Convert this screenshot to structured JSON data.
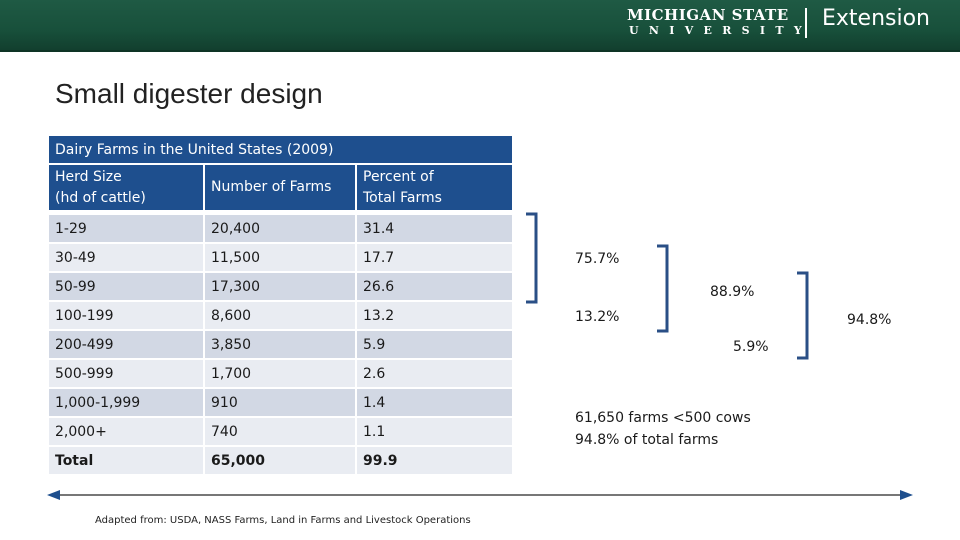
{
  "header": {
    "university_line1": "MICHIGAN STATE",
    "university_line2": "UNIVERSITY",
    "unit": "Extension"
  },
  "slide": {
    "title": "Small digester design"
  },
  "table": {
    "caption": "Dairy Farms in the United States (2009)",
    "columns": [
      {
        "line1": "Herd Size",
        "line2": "(hd of cattle)"
      },
      {
        "line1": "Number of Farms",
        "line2": ""
      },
      {
        "line1": "Percent of",
        "line2": "Total Farms"
      }
    ],
    "rows": [
      {
        "herd": "1-29",
        "farms": "20,400",
        "pct": "31.4"
      },
      {
        "herd": "30-49",
        "farms": "11,500",
        "pct": "17.7"
      },
      {
        "herd": "50-99",
        "farms": "17,300",
        "pct": "26.6"
      },
      {
        "herd": "100-199",
        "farms": "8,600",
        "pct": "13.2"
      },
      {
        "herd": "200-499",
        "farms": "3,850",
        "pct": "5.9"
      },
      {
        "herd": "500-999",
        "farms": "1,700",
        "pct": "2.6"
      },
      {
        "herd": "1,000-1,999",
        "farms": "910",
        "pct": "1.4"
      },
      {
        "herd": "2,000+",
        "farms": "740",
        "pct": "1.1"
      },
      {
        "herd": "Total",
        "farms": "65,000",
        "pct": "99.9"
      }
    ]
  },
  "annotations": {
    "group_small": "75.7%",
    "group_medium": "13.2%",
    "group_combined": "88.9%",
    "group_200_499": "5.9%",
    "group_total": "94.8%",
    "summary_line1": "61,650 farms <500 cows",
    "summary_line2": "94.8% of total farms"
  },
  "footer": {
    "source": "Adapted from: USDA, NASS Farms, Land in Farms and Livestock Operations"
  },
  "colors": {
    "header_green": "#18503b",
    "table_header_blue": "#1e4f8e",
    "row_dark": "#d2d8e4",
    "row_light": "#e9ecf2",
    "bracket_blue": "#2a4f86"
  }
}
